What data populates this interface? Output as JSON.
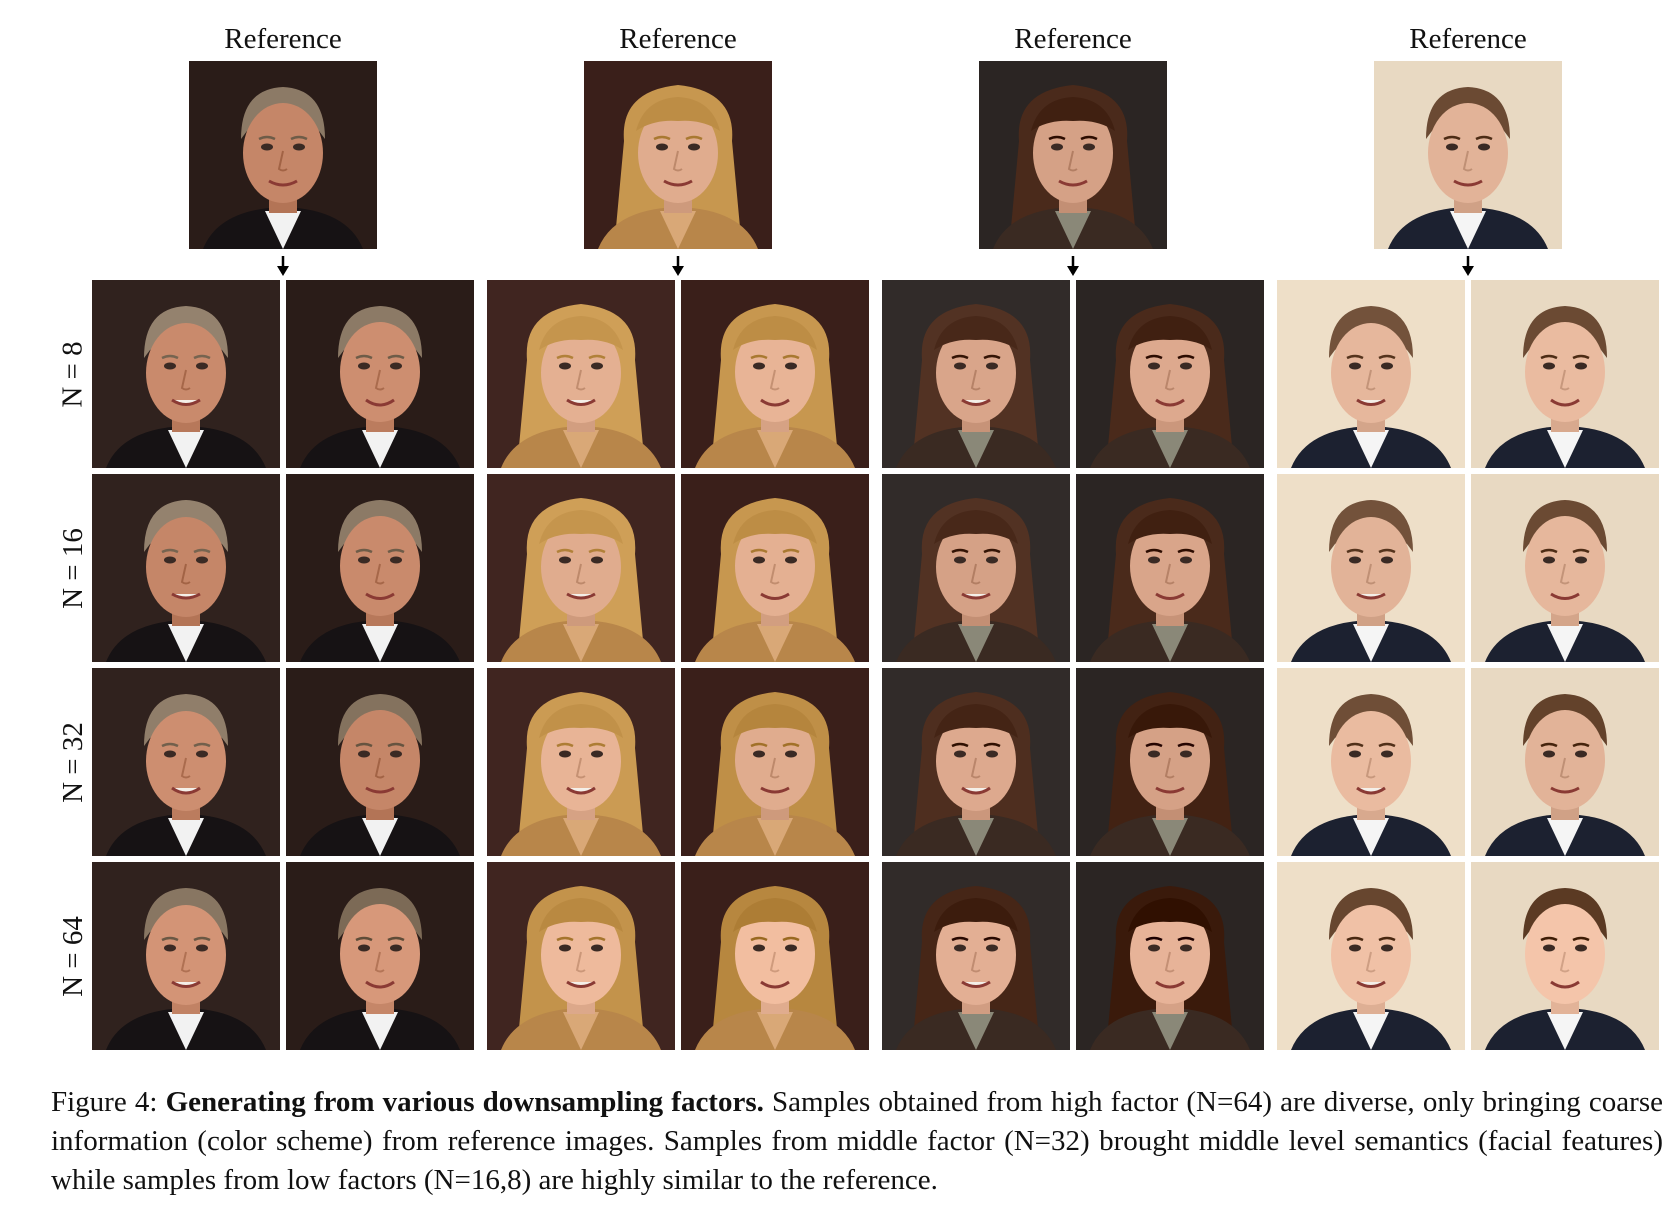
{
  "figure": {
    "reference_label": "Reference",
    "row_labels": [
      "N = 8",
      "N = 16",
      "N = 32",
      "N = 64"
    ],
    "identities": [
      {
        "name": "subject-1",
        "bg": "#2a1c18",
        "skin": "#c98a6c",
        "hair": "#8c7a66",
        "shirt": "#f2f2f2",
        "suit": "#161214"
      },
      {
        "name": "subject-2",
        "bg": "#3a1f1a",
        "skin": "#e4b092",
        "hair": "#c7974f",
        "shirt": "#d9a877",
        "suit": "#b8864a"
      },
      {
        "name": "subject-3",
        "bg": "#2b2523",
        "skin": "#d9a58a",
        "hair": "#4a2a1b",
        "shirt": "#8a8878",
        "suit": "#3a2a22"
      },
      {
        "name": "subject-4",
        "bg": "#e8d9c2",
        "skin": "#e6b79c",
        "hair": "#6b4a33",
        "shirt": "#f5f5f5",
        "suit": "#1c2130"
      }
    ]
  },
  "caption": {
    "prefix": "Figure 4: ",
    "bold": "Generating from various downsampling factors.",
    "rest": " Samples obtained from high factor (N=64) are diverse, only bringing coarse information (color scheme) from reference images. Samples from middle factor (N=32) brought middle level semantics (facial features) while samples from low factors (N=16,8) are highly similar to the reference."
  }
}
